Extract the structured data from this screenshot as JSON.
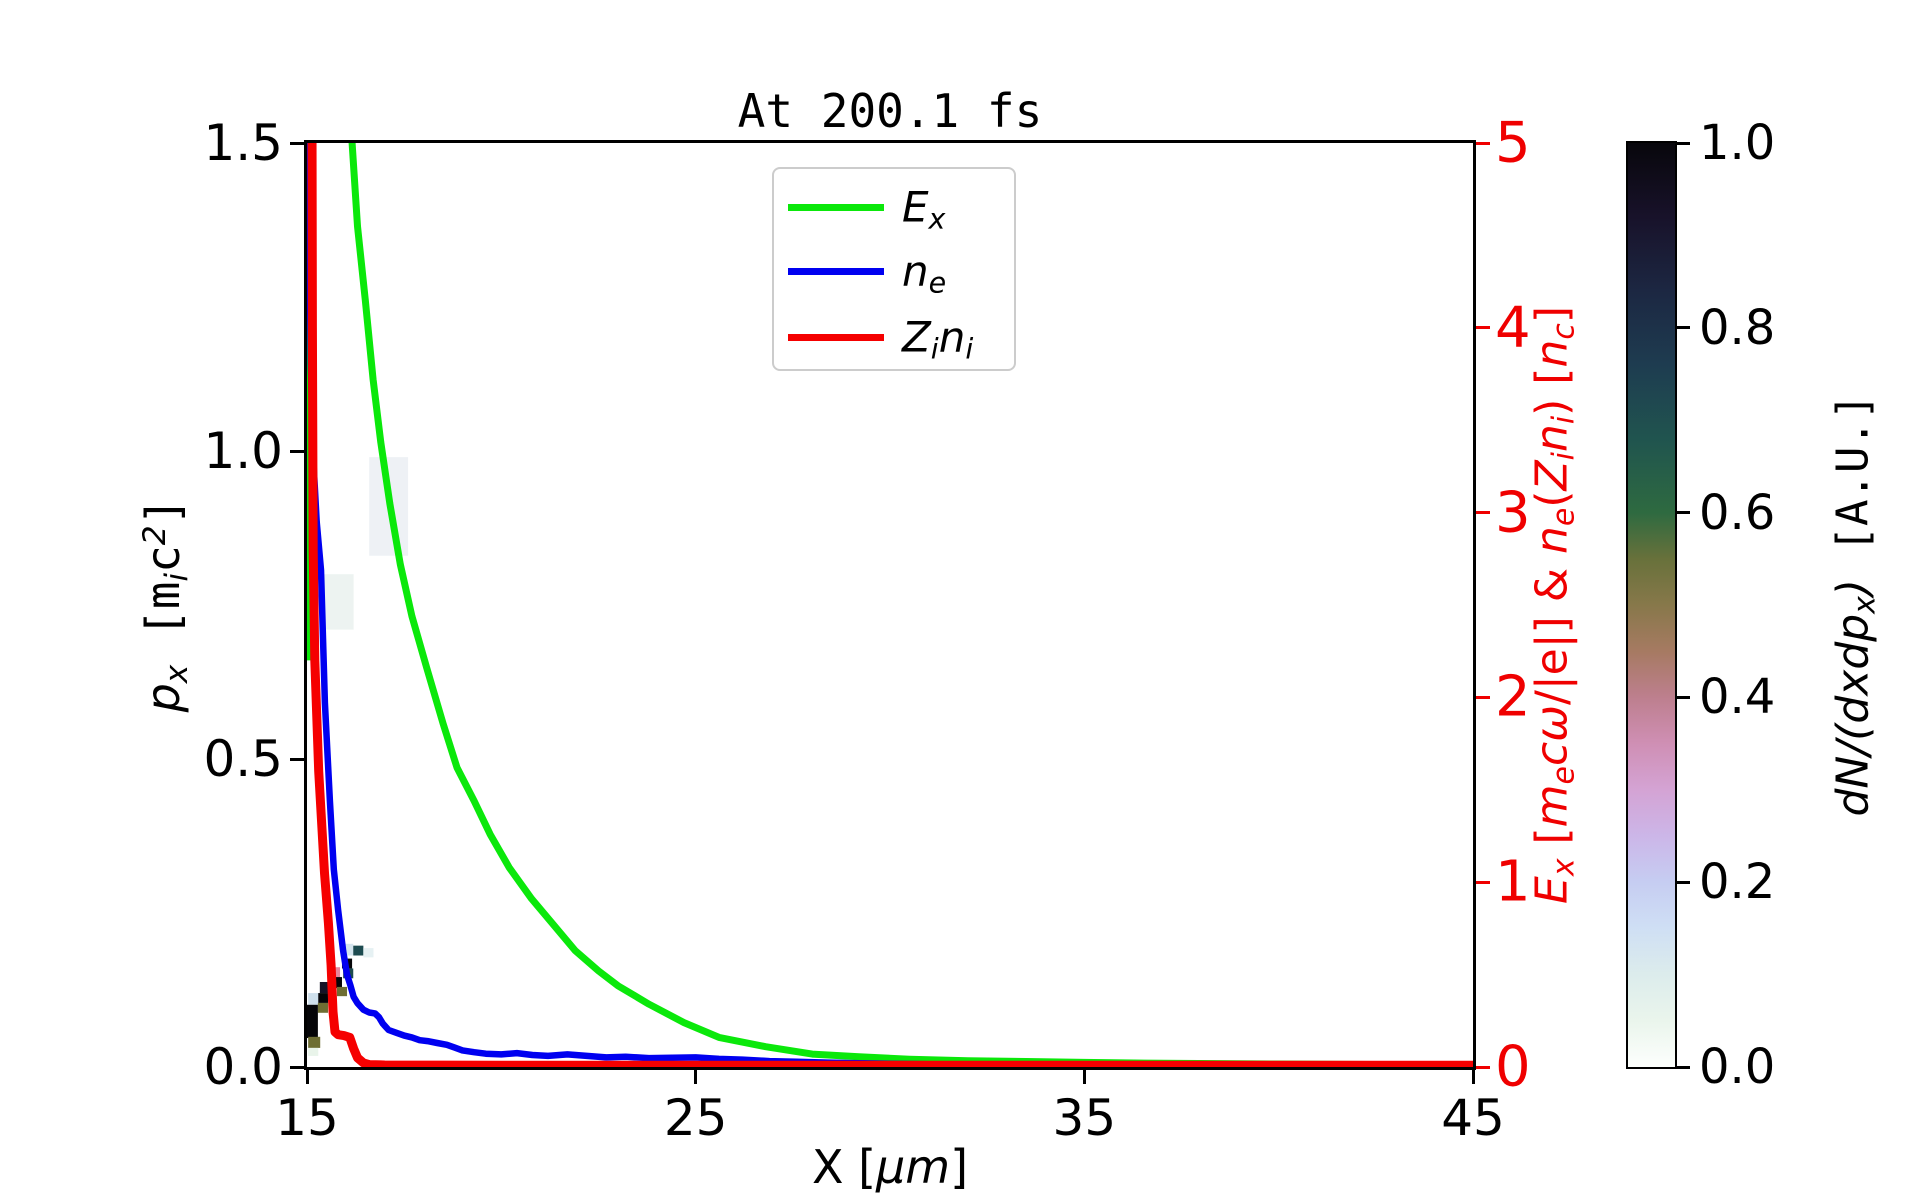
{
  "figure": {
    "title": "At 200.1 fs"
  },
  "chart_data": {
    "type": "line",
    "title": "At 200.1 fs",
    "x_axis": {
      "range": [
        15,
        45
      ],
      "ticks": [
        15,
        25,
        35,
        45
      ],
      "tick_labels": [
        "15",
        "25",
        "35",
        "45"
      ],
      "label_parts": [
        {
          "t": "X [",
          "cls": ""
        },
        {
          "t": "μm",
          "cls": "it"
        },
        {
          "t": "]",
          "cls": ""
        }
      ]
    },
    "left_axis": {
      "range": [
        0,
        1.5
      ],
      "ticks": [
        0,
        0.5,
        1,
        1.5
      ],
      "tick_labels": [
        "0.0",
        "0.5",
        "1.0",
        "1.5"
      ],
      "label_parts": [
        {
          "t": "p",
          "cls": "it"
        },
        {
          "sub": "x"
        },
        {
          "t": " [",
          "cls": "mono"
        },
        {
          "t": "m",
          "cls": "mono"
        },
        {
          "sub": "i"
        },
        {
          "t": "c",
          "cls": "mono"
        },
        {
          "sup": "2"
        },
        {
          "t": "]",
          "cls": "mono"
        }
      ]
    },
    "right_axis": {
      "range": [
        0,
        5
      ],
      "ticks": [
        0,
        1,
        2,
        3,
        4,
        5
      ],
      "tick_labels": [
        "0",
        "1",
        "2",
        "3",
        "4",
        "5"
      ],
      "color": "#ef0000",
      "label_parts": [
        {
          "t": "E",
          "cls": "it"
        },
        {
          "sub": "x"
        },
        {
          "t": " ["
        },
        {
          "t": "m",
          "cls": "it"
        },
        {
          "sub": "e"
        },
        {
          "t": "cω",
          "cls": "it"
        },
        {
          "t": "/|e|] & "
        },
        {
          "t": "n",
          "cls": "it"
        },
        {
          "sub": "e"
        },
        {
          "t": "("
        },
        {
          "t": "Z",
          "cls": "it"
        },
        {
          "sub": "i"
        },
        {
          "t": "n",
          "cls": "it"
        },
        {
          "sub": "i"
        },
        {
          "t": ") ["
        },
        {
          "t": "n",
          "cls": "it"
        },
        {
          "sub": "c"
        },
        {
          "t": "]"
        }
      ]
    },
    "colorbar": {
      "range": [
        0,
        1
      ],
      "ticks": [
        0,
        0.2,
        0.4,
        0.6,
        0.8,
        1.0
      ],
      "tick_labels": [
        "0.0",
        "0.2",
        "0.4",
        "0.6",
        "0.8",
        "1.0"
      ],
      "label_parts": [
        {
          "t": "dN",
          "cls": "it"
        },
        {
          "t": "/(",
          "cls": "it"
        },
        {
          "t": "dxdp",
          "cls": "it"
        },
        {
          "sub": "x"
        },
        {
          "t": ")",
          "cls": "it"
        },
        {
          "t": " [A.U.]",
          "cls": "mono"
        }
      ],
      "gradient_stops": [
        [
          0.0,
          "#fdfffd"
        ],
        [
          0.05,
          "#eaf5ec"
        ],
        [
          0.1,
          "#dcecec"
        ],
        [
          0.15,
          "#cfdff4"
        ],
        [
          0.2,
          "#c6cdf2"
        ],
        [
          0.25,
          "#ccb6e8"
        ],
        [
          0.3,
          "#d4a3d4"
        ],
        [
          0.35,
          "#cf8fb4"
        ],
        [
          0.4,
          "#bd7f8e"
        ],
        [
          0.45,
          "#a67a62"
        ],
        [
          0.5,
          "#87784a"
        ],
        [
          0.55,
          "#68713b"
        ],
        [
          0.6,
          "#2e6a40"
        ],
        [
          0.68,
          "#20544f"
        ],
        [
          0.76,
          "#1e3c50"
        ],
        [
          0.84,
          "#1c2742"
        ],
        [
          0.92,
          "#18122a"
        ],
        [
          1.0,
          "#08070c"
        ]
      ]
    },
    "legend": {
      "items": [
        {
          "name": "Ex",
          "color": "#0be80b",
          "parts": [
            {
              "t": "E",
              "cls": "it"
            },
            {
              "sub": "x"
            }
          ]
        },
        {
          "name": "ne",
          "color": "#0000f0",
          "parts": [
            {
              "t": "n",
              "cls": "it"
            },
            {
              "sub": "e"
            }
          ]
        },
        {
          "name": "Zini",
          "color": "#f50000",
          "parts": [
            {
              "t": "Z",
              "cls": "it"
            },
            {
              "sub": "i"
            },
            {
              "t": "n",
              "cls": "it"
            },
            {
              "sub": "i"
            }
          ]
        }
      ]
    },
    "series": [
      {
        "name": "Ex",
        "axis": "right",
        "color": "#0be80b",
        "width": 7,
        "points": [
          [
            15.03,
            2.2
          ],
          [
            15.045,
            6.5
          ],
          [
            16.05,
            6.5
          ],
          [
            16.16,
            5.0
          ],
          [
            16.3,
            4.55
          ],
          [
            16.5,
            4.15
          ],
          [
            16.7,
            3.72
          ],
          [
            16.9,
            3.38
          ],
          [
            17.13,
            3.05
          ],
          [
            17.4,
            2.72
          ],
          [
            17.7,
            2.44
          ],
          [
            18.08,
            2.16
          ],
          [
            18.5,
            1.86
          ],
          [
            18.86,
            1.62
          ],
          [
            19.3,
            1.44
          ],
          [
            19.71,
            1.26
          ],
          [
            20.2,
            1.08
          ],
          [
            20.78,
            0.91
          ],
          [
            21.3,
            0.78
          ],
          [
            21.9,
            0.63
          ],
          [
            22.5,
            0.52
          ],
          [
            23.0,
            0.44
          ],
          [
            23.8,
            0.34
          ],
          [
            24.7,
            0.24
          ],
          [
            25.6,
            0.16
          ],
          [
            26.8,
            0.11
          ],
          [
            28.0,
            0.07
          ],
          [
            29.2,
            0.055
          ],
          [
            30.5,
            0.042
          ],
          [
            32,
            0.034
          ],
          [
            33.5,
            0.03
          ],
          [
            35,
            0.025
          ],
          [
            37,
            0.02
          ],
          [
            40,
            0.016
          ],
          [
            43,
            0.013
          ],
          [
            45,
            0.012
          ]
        ]
      },
      {
        "name": "ne",
        "axis": "right",
        "color": "#0000f0",
        "width": 6.5,
        "points": [
          [
            15.03,
            6.0
          ],
          [
            15.06,
            4.5
          ],
          [
            15.1,
            3.8
          ],
          [
            15.16,
            3.3
          ],
          [
            15.25,
            2.95
          ],
          [
            15.36,
            2.69
          ],
          [
            15.46,
            1.97
          ],
          [
            15.59,
            1.44
          ],
          [
            15.69,
            1.07
          ],
          [
            15.8,
            0.85
          ],
          [
            15.93,
            0.63
          ],
          [
            16.03,
            0.5
          ],
          [
            16.12,
            0.44
          ],
          [
            16.2,
            0.38
          ],
          [
            16.3,
            0.345
          ],
          [
            16.45,
            0.31
          ],
          [
            16.6,
            0.295
          ],
          [
            16.75,
            0.29
          ],
          [
            16.85,
            0.27
          ],
          [
            16.95,
            0.235
          ],
          [
            17.1,
            0.2
          ],
          [
            17.3,
            0.185
          ],
          [
            17.5,
            0.17
          ],
          [
            17.7,
            0.16
          ],
          [
            17.9,
            0.145
          ],
          [
            18.1,
            0.14
          ],
          [
            18.35,
            0.13
          ],
          [
            18.6,
            0.12
          ],
          [
            18.8,
            0.105
          ],
          [
            19.0,
            0.09
          ],
          [
            19.3,
            0.08
          ],
          [
            19.6,
            0.072
          ],
          [
            20.0,
            0.068
          ],
          [
            20.4,
            0.075
          ],
          [
            20.8,
            0.065
          ],
          [
            21.2,
            0.06
          ],
          [
            21.7,
            0.068
          ],
          [
            22.2,
            0.06
          ],
          [
            22.7,
            0.052
          ],
          [
            23.2,
            0.056
          ],
          [
            23.8,
            0.048
          ],
          [
            24.4,
            0.05
          ],
          [
            25.0,
            0.052
          ],
          [
            25.6,
            0.044
          ],
          [
            26.2,
            0.04
          ],
          [
            26.9,
            0.032
          ],
          [
            27.6,
            0.028
          ],
          [
            28.4,
            0.024
          ],
          [
            29.2,
            0.02
          ],
          [
            30.0,
            0.018
          ],
          [
            31.0,
            0.015
          ],
          [
            32.5,
            0.012
          ],
          [
            34.0,
            0.01
          ],
          [
            36.0,
            0.009
          ],
          [
            39.0,
            0.008
          ],
          [
            42.0,
            0.008
          ],
          [
            45.0,
            0.008
          ]
        ]
      },
      {
        "name": "Zini",
        "axis": "right",
        "color": "#f50000",
        "width": 9,
        "points": [
          [
            15.12,
            6.0
          ],
          [
            15.14,
            4.0
          ],
          [
            15.16,
            2.8
          ],
          [
            15.2,
            2.2
          ],
          [
            15.3,
            1.6
          ],
          [
            15.45,
            1.05
          ],
          [
            15.55,
            0.78
          ],
          [
            15.62,
            0.55
          ],
          [
            15.67,
            0.3
          ],
          [
            15.72,
            0.19
          ],
          [
            15.8,
            0.175
          ],
          [
            15.95,
            0.17
          ],
          [
            16.1,
            0.16
          ],
          [
            16.2,
            0.1
          ],
          [
            16.3,
            0.05
          ],
          [
            16.45,
            0.022
          ],
          [
            16.6,
            0.013
          ],
          [
            17.0,
            0.011
          ],
          [
            20,
            0.01
          ],
          [
            25,
            0.01
          ],
          [
            30,
            0.01
          ],
          [
            35,
            0.01
          ],
          [
            40,
            0.01
          ],
          [
            45,
            0.01
          ]
        ]
      }
    ],
    "histogram_blocks": [
      {
        "x": 15.93,
        "p": 0.181,
        "w": 0.26,
        "h": 0.019,
        "c": "#d4e4ee"
      },
      {
        "x": 16.19,
        "p": 0.181,
        "w": 0.26,
        "h": 0.016,
        "c": "#1d4b50"
      },
      {
        "x": 16.45,
        "p": 0.178,
        "w": 0.26,
        "h": 0.015,
        "c": "#e6f1f3"
      },
      {
        "x": 15.9,
        "p": 0.16,
        "w": 0.26,
        "h": 0.016,
        "c": "#050508"
      },
      {
        "x": 15.93,
        "p": 0.144,
        "w": 0.26,
        "h": 0.016,
        "c": "#1d4b50"
      },
      {
        "x": 15.59,
        "p": 0.146,
        "w": 0.26,
        "h": 0.016,
        "c": "#e8879d"
      },
      {
        "x": 15.59,
        "p": 0.128,
        "w": 0.31,
        "h": 0.018,
        "c": "#050508"
      },
      {
        "x": 15.33,
        "p": 0.12,
        "w": 0.26,
        "h": 0.018,
        "c": "#151226"
      },
      {
        "x": 15.77,
        "p": 0.115,
        "w": 0.26,
        "h": 0.015,
        "c": "#6e6e33"
      },
      {
        "x": 15.28,
        "p": 0.104,
        "w": 0.26,
        "h": 0.016,
        "c": "#050508"
      },
      {
        "x": 15.03,
        "p": 0.101,
        "w": 0.26,
        "h": 0.019,
        "c": "#cfe0ec"
      },
      {
        "x": 15.28,
        "p": 0.088,
        "w": 0.26,
        "h": 0.016,
        "c": "#6e6e33"
      },
      {
        "x": 15.0,
        "p": 0.047,
        "w": 0.28,
        "h": 0.054,
        "c": "#050508"
      },
      {
        "x": 15.03,
        "p": 0.031,
        "w": 0.31,
        "h": 0.018,
        "c": "#6e6e33"
      },
      {
        "x": 15.03,
        "p": 0.018,
        "w": 0.26,
        "h": 0.013,
        "c": "#e9f4ea"
      },
      {
        "x": 15.4,
        "p": 0.71,
        "w": 0.8,
        "h": 0.09,
        "c": "#edf3f1"
      },
      {
        "x": 16.6,
        "p": 0.83,
        "w": 1.0,
        "h": 0.16,
        "c": "#eef1f5"
      }
    ],
    "layout": {
      "grid": false,
      "legend_position": "upper center"
    }
  }
}
